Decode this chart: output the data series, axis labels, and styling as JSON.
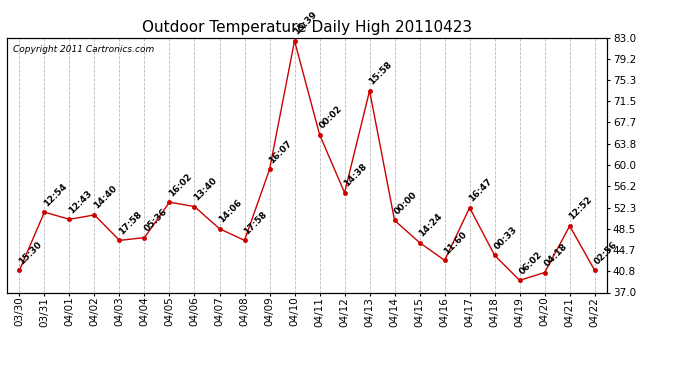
{
  "title": "Outdoor Temperature Daily High 20110423",
  "copyright": "Copyright 2011 Cartronics.com",
  "x_labels": [
    "03/30",
    "03/31",
    "04/01",
    "04/02",
    "04/03",
    "04/04",
    "04/05",
    "04/06",
    "04/07",
    "04/08",
    "04/09",
    "04/10",
    "04/11",
    "04/12",
    "04/13",
    "04/14",
    "04/15",
    "04/16",
    "04/17",
    "04/18",
    "04/19",
    "04/20",
    "04/21",
    "04/22"
  ],
  "y_values": [
    41.0,
    51.5,
    50.2,
    51.0,
    46.4,
    46.9,
    53.3,
    52.5,
    48.5,
    46.4,
    59.2,
    82.4,
    65.5,
    55.0,
    73.4,
    50.0,
    46.0,
    42.8,
    52.3,
    43.7,
    39.2,
    40.6,
    49.0,
    41.0
  ],
  "annotations": [
    "15:30",
    "12:54",
    "12:43",
    "14:40",
    "17:58",
    "05:36",
    "16:02",
    "13:40",
    "14:06",
    "17:58",
    "16:07",
    "15:39",
    "00:02",
    "14:38",
    "15:58",
    "00:00",
    "14:24",
    "11:60",
    "16:47",
    "00:33",
    "06:02",
    "04:18",
    "12:52",
    "02:56"
  ],
  "y_right_ticks": [
    37.0,
    40.8,
    44.7,
    48.5,
    52.3,
    56.2,
    60.0,
    63.8,
    67.7,
    71.5,
    75.3,
    79.2,
    83.0
  ],
  "ylim": [
    37.0,
    83.0
  ],
  "line_color": "#cc0000",
  "marker_color": "#cc0000",
  "bg_color": "#ffffff",
  "grid_color": "#bbbbbb",
  "title_fontsize": 11,
  "annotation_fontsize": 6.5,
  "copyright_fontsize": 6.5,
  "tick_fontsize": 7.5
}
